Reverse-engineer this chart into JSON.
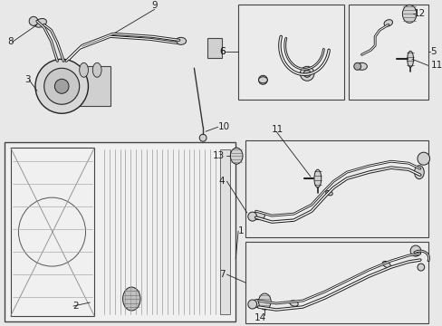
{
  "bg": "#e8e8e8",
  "fg": "#222222",
  "box_bg": "#ebebeb",
  "box_ec": "#444444",
  "white": "#ffffff",
  "light": "#d0d0d0",
  "mid": "#aaaaaa"
}
